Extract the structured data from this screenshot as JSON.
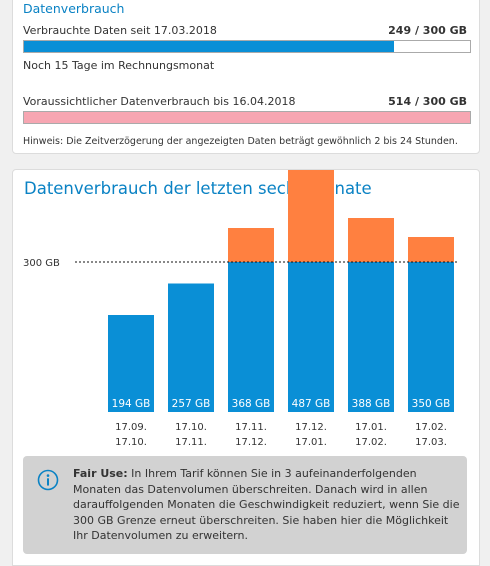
{
  "usage": {
    "title": "Datenverbrauch",
    "used_label": "Verbrauchte Daten seit 17.03.2018",
    "used_value": "249 / 300 GB",
    "used_fraction": 0.83,
    "used_color": "#0a8fd6",
    "days_left": "Noch 15 Tage im Rechnungsmonat",
    "forecast_label": "Voraussichtlicher Datenverbrauch bis 16.04.2018",
    "forecast_value": "514 / 300 GB",
    "forecast_fraction": 1.0,
    "forecast_color": "#f7a6b2",
    "hint": "Hinweis: Die Zeitverzögerung der angezeigten Daten beträgt gewöhnlich 2 bis 24 Stunden."
  },
  "history": {
    "title": "Datenverbrauch der letzten sechs Monate",
    "fair_use_title": "Fair Use:",
    "fair_use_text": "In Ihrem Tarif können Sie in 3 aufeinanderfolgenden Monaten das Datenvolumen überschreiten. Danach wird in allen darauffolgenden Monaten die Geschwindigkeit reduziert, wenn Sie die 300 GB Grenze erneut überschreiten. Sie haben hier die Möglichkeit Ihr Datenvolumen zu erweitern."
  },
  "chart_data": {
    "type": "bar",
    "title": "Datenverbrauch der letzten sechs Monate",
    "unit": "GB",
    "limit": 300,
    "limit_label": "300 GB",
    "ylim": [
      0,
      520
    ],
    "categories": [
      {
        "from": "17.09.",
        "to": "17.10."
      },
      {
        "from": "17.10.",
        "to": "17.11."
      },
      {
        "from": "17.11.",
        "to": "17.12."
      },
      {
        "from": "17.12.",
        "to": "17.01."
      },
      {
        "from": "17.01.",
        "to": "17.02."
      },
      {
        "from": "17.02.",
        "to": "17.03."
      }
    ],
    "values": [
      194,
      257,
      368,
      487,
      388,
      350
    ],
    "value_labels": [
      "194 GB",
      "257 GB",
      "368 GB",
      "487 GB",
      "388 GB",
      "350 GB"
    ],
    "colors": {
      "within_limit": "#0a8fd6",
      "over_limit": "#ff8040"
    }
  }
}
